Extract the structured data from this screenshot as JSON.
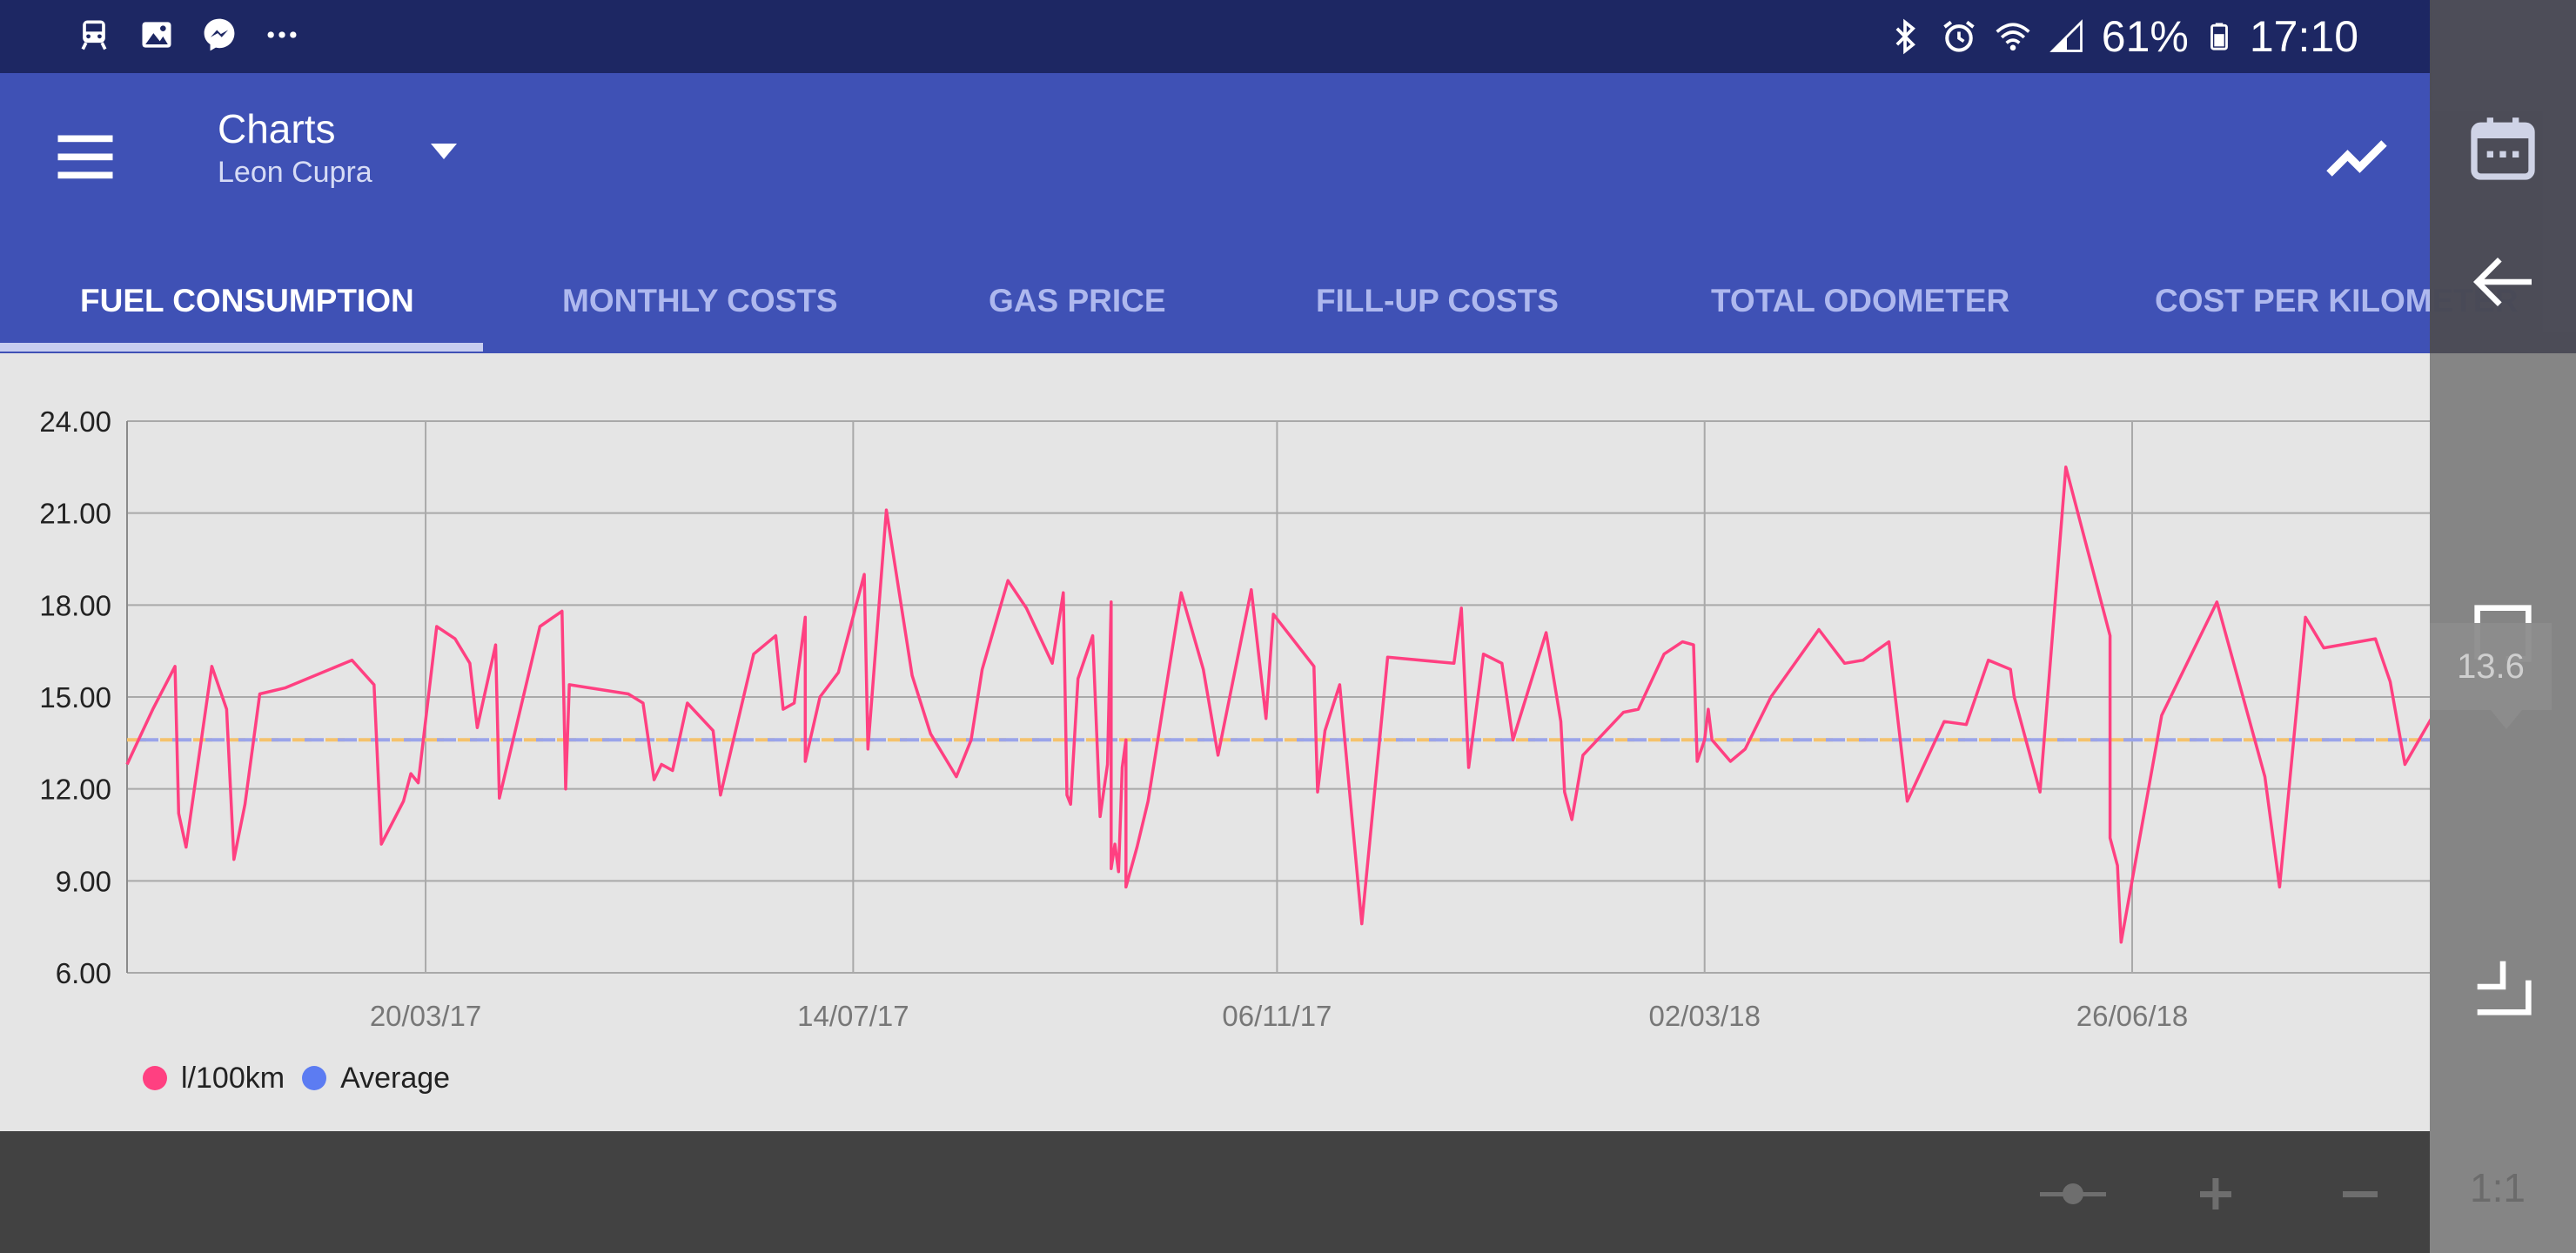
{
  "status_bar": {
    "left_icons": [
      "train-icon",
      "image-icon",
      "messenger-icon",
      "more-dots-icon"
    ],
    "right_icons": [
      "bluetooth-icon",
      "alarm-icon",
      "wifi-icon",
      "signal-icon",
      "battery-icon"
    ],
    "battery": "61%",
    "time": "17:10"
  },
  "app_bar": {
    "title": "Charts",
    "subtitle": "Leon Cupra",
    "menu_icon": "hamburger-menu-icon",
    "dropdown_icon": "dropdown-arrow-icon",
    "trend_icon": "trend-line-icon",
    "calendar_icon": "calendar-icon",
    "primary_color": "#3f51b5",
    "status_color": "#1d2763"
  },
  "tabs": [
    {
      "label": "FUEL CONSUMPTION",
      "active": true
    },
    {
      "label": "MONTHLY COSTS",
      "active": false
    },
    {
      "label": "GAS PRICE",
      "active": false
    },
    {
      "label": "FILL-UP COSTS",
      "active": false
    },
    {
      "label": "TOTAL ODOMETER",
      "active": false
    },
    {
      "label": "COST PER KILOMETER",
      "active": false
    }
  ],
  "chart_data": {
    "type": "line",
    "title": "",
    "xlabel": "",
    "ylabel": "",
    "ylim": [
      6.0,
      24.0
    ],
    "y_ticks": [
      "24.00",
      "21.00",
      "18.00",
      "15.00",
      "12.00",
      "9.00",
      "6.00"
    ],
    "x_ticks": [
      "20/03/17",
      "14/07/17",
      "06/11/17",
      "02/03/18",
      "26/06/18"
    ],
    "x_domain": [
      "2016-12-29",
      "2018-10-06"
    ],
    "grid": true,
    "legend_position": "bottom-left",
    "series": [
      {
        "name": "l/100km",
        "color": "#ff4081",
        "points": [
          [
            "2016-12-29",
            12.8
          ],
          [
            "2017-01-05",
            14.6
          ],
          [
            "2017-01-11",
            16.0
          ],
          [
            "2017-01-12",
            11.2
          ],
          [
            "2017-01-14",
            10.1
          ],
          [
            "2017-01-21",
            16.0
          ],
          [
            "2017-01-25",
            14.6
          ],
          [
            "2017-01-27",
            9.7
          ],
          [
            "2017-01-30",
            11.5
          ],
          [
            "2017-02-03",
            15.1
          ],
          [
            "2017-02-10",
            15.3
          ],
          [
            "2017-02-28",
            16.2
          ],
          [
            "2017-03-06",
            15.4
          ],
          [
            "2017-03-08",
            10.2
          ],
          [
            "2017-03-14",
            11.6
          ],
          [
            "2017-03-16",
            12.5
          ],
          [
            "2017-03-18",
            12.2
          ],
          [
            "2017-03-23",
            17.3
          ],
          [
            "2017-03-28",
            16.9
          ],
          [
            "2017-04-01",
            16.1
          ],
          [
            "2017-04-03",
            14.0
          ],
          [
            "2017-04-08",
            16.7
          ],
          [
            "2017-04-09",
            11.7
          ],
          [
            "2017-04-20",
            17.3
          ],
          [
            "2017-04-26",
            17.8
          ],
          [
            "2017-04-27",
            12.0
          ],
          [
            "2017-04-28",
            15.4
          ],
          [
            "2017-05-14",
            15.1
          ],
          [
            "2017-05-18",
            14.8
          ],
          [
            "2017-05-21",
            12.3
          ],
          [
            "2017-05-23",
            12.8
          ],
          [
            "2017-05-26",
            12.6
          ],
          [
            "2017-05-30",
            14.8
          ],
          [
            "2017-06-06",
            13.9
          ],
          [
            "2017-06-08",
            11.8
          ],
          [
            "2017-06-17",
            16.4
          ],
          [
            "2017-06-23",
            17.0
          ],
          [
            "2017-06-25",
            14.6
          ],
          [
            "2017-06-28",
            14.8
          ],
          [
            "2017-07-01",
            17.6
          ],
          [
            "2017-07-01",
            12.9
          ],
          [
            "2017-07-05",
            15.0
          ],
          [
            "2017-07-10",
            15.8
          ],
          [
            "2017-07-17",
            19.0
          ],
          [
            "2017-07-18",
            13.3
          ],
          [
            "2017-07-23",
            21.1
          ],
          [
            "2017-07-30",
            15.7
          ],
          [
            "2017-08-04",
            13.8
          ],
          [
            "2017-08-10",
            12.6
          ],
          [
            "2017-08-11",
            12.4
          ],
          [
            "2017-08-15",
            13.6
          ],
          [
            "2017-08-18",
            15.9
          ],
          [
            "2017-08-25",
            18.8
          ],
          [
            "2017-08-30",
            17.9
          ],
          [
            "2017-09-06",
            16.1
          ],
          [
            "2017-09-09",
            18.4
          ],
          [
            "2017-09-10",
            11.8
          ],
          [
            "2017-09-11",
            11.5
          ],
          [
            "2017-09-13",
            15.6
          ],
          [
            "2017-09-17",
            17.0
          ],
          [
            "2017-09-19",
            11.1
          ],
          [
            "2017-09-21",
            12.8
          ],
          [
            "2017-09-22",
            18.1
          ],
          [
            "2017-09-22",
            9.4
          ],
          [
            "2017-09-23",
            10.2
          ],
          [
            "2017-09-24",
            9.3
          ],
          [
            "2017-09-25",
            12.7
          ],
          [
            "2017-09-26",
            13.6
          ],
          [
            "2017-09-26",
            8.8
          ],
          [
            "2017-09-29",
            10.1
          ],
          [
            "2017-10-02",
            11.6
          ],
          [
            "2017-10-11",
            18.4
          ],
          [
            "2017-10-17",
            15.9
          ],
          [
            "2017-10-21",
            13.1
          ],
          [
            "2017-10-30",
            18.5
          ],
          [
            "2017-11-03",
            14.3
          ],
          [
            "2017-11-05",
            17.7
          ],
          [
            "2017-11-16",
            16.0
          ],
          [
            "2017-11-17",
            11.9
          ],
          [
            "2017-11-19",
            13.9
          ],
          [
            "2017-11-23",
            15.4
          ],
          [
            "2017-11-29",
            7.6
          ],
          [
            "2017-12-06",
            16.3
          ],
          [
            "2017-12-24",
            16.1
          ],
          [
            "2017-12-26",
            17.9
          ],
          [
            "2017-12-28",
            12.7
          ],
          [
            "2018-01-01",
            16.4
          ],
          [
            "2018-01-06",
            16.1
          ],
          [
            "2018-01-09",
            13.6
          ],
          [
            "2018-01-18",
            17.1
          ],
          [
            "2018-01-22",
            14.2
          ],
          [
            "2018-01-23",
            11.9
          ],
          [
            "2018-01-25",
            11.0
          ],
          [
            "2018-01-28",
            13.1
          ],
          [
            "2018-02-08",
            14.5
          ],
          [
            "2018-02-12",
            14.6
          ],
          [
            "2018-02-19",
            16.4
          ],
          [
            "2018-02-24",
            16.8
          ],
          [
            "2018-02-27",
            16.7
          ],
          [
            "2018-02-28",
            12.9
          ],
          [
            "2018-03-02",
            13.6
          ],
          [
            "2018-03-03",
            14.6
          ],
          [
            "2018-03-04",
            13.6
          ],
          [
            "2018-03-09",
            12.9
          ],
          [
            "2018-03-13",
            13.3
          ],
          [
            "2018-03-20",
            15.0
          ],
          [
            "2018-04-02",
            17.2
          ],
          [
            "2018-04-09",
            16.1
          ],
          [
            "2018-04-14",
            16.2
          ],
          [
            "2018-04-21",
            16.8
          ],
          [
            "2018-04-26",
            11.6
          ],
          [
            "2018-05-06",
            14.2
          ],
          [
            "2018-05-12",
            14.1
          ],
          [
            "2018-05-18",
            16.2
          ],
          [
            "2018-05-24",
            15.9
          ],
          [
            "2018-05-25",
            15.0
          ],
          [
            "2018-06-01",
            11.9
          ],
          [
            "2018-06-08",
            22.5
          ],
          [
            "2018-06-20",
            17.0
          ],
          [
            "2018-06-20",
            10.4
          ],
          [
            "2018-06-22",
            9.5
          ],
          [
            "2018-06-23",
            7.0
          ],
          [
            "2018-07-04",
            14.4
          ],
          [
            "2018-07-19",
            18.1
          ],
          [
            "2018-08-01",
            12.4
          ],
          [
            "2018-08-05",
            8.8
          ],
          [
            "2018-08-12",
            17.6
          ],
          [
            "2018-08-17",
            16.6
          ],
          [
            "2018-08-31",
            16.9
          ],
          [
            "2018-09-04",
            15.5
          ],
          [
            "2018-09-08",
            12.8
          ],
          [
            "2018-09-20",
            15.3
          ]
        ]
      },
      {
        "name": "Average",
        "color": "#5c7cf2",
        "constant": 13.6
      }
    ]
  },
  "legend": [
    {
      "label": "l/100km",
      "color": "#ff4081"
    },
    {
      "label": "Average",
      "color": "#5c7cf2"
    }
  ],
  "tooltip": {
    "value": "13.6"
  },
  "bottom_bar": {
    "buttons": [
      "slider-icon",
      "zoom-in-icon",
      "zoom-out-icon"
    ]
  },
  "overlay": {
    "ratio": "1:1",
    "icons": [
      "calendar-icon",
      "back-arrow-icon",
      "top-corner-icon",
      "bottom-corner-icon"
    ]
  }
}
